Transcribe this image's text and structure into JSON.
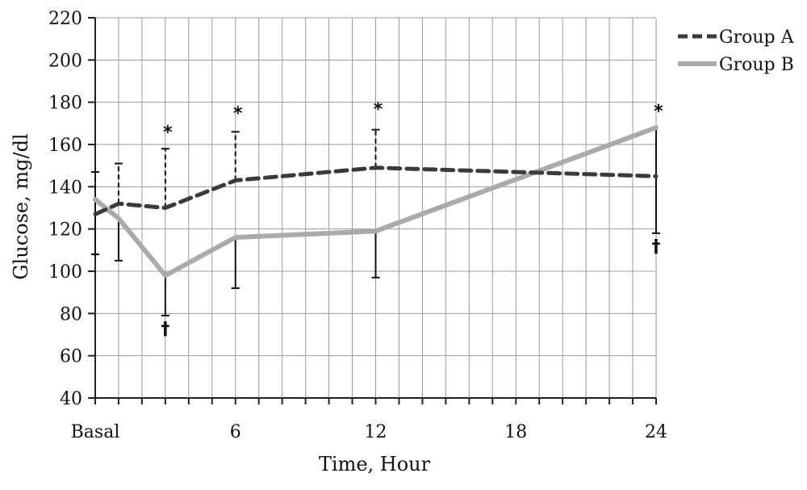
{
  "chart_data": {
    "type": "line",
    "xlabel": "Time, Hour",
    "ylabel": "Glucose, mg/dl",
    "ylim": [
      40,
      220
    ],
    "yticks": [
      40,
      60,
      80,
      100,
      120,
      140,
      160,
      180,
      200,
      220
    ],
    "xlim": [
      0,
      24
    ],
    "xticks": [
      {
        "x": 0,
        "label": "Basal"
      },
      {
        "x": 6,
        "label": "6"
      },
      {
        "x": 12,
        "label": "12"
      },
      {
        "x": 18,
        "label": "18"
      },
      {
        "x": 24,
        "label": "24"
      }
    ],
    "grid": true,
    "legend_position": "top-right",
    "series": [
      {
        "name": "Group A",
        "style": "dashed",
        "color": "#3a3a3a",
        "points": [
          {
            "x": 0,
            "y": 127,
            "err_low": 108,
            "err_high": 147
          },
          {
            "x": 1,
            "y": 132,
            "err_high": 151
          },
          {
            "x": 3,
            "y": 130,
            "err_high": 158
          },
          {
            "x": 6,
            "y": 143,
            "err_high": 166
          },
          {
            "x": 12,
            "y": 149,
            "err_high": 167
          },
          {
            "x": 24,
            "y": 145,
            "err_high": null
          }
        ]
      },
      {
        "name": "Group B",
        "style": "solid",
        "color": "#aaaaaa",
        "points": [
          {
            "x": 0,
            "y": 134,
            "err_low": 108
          },
          {
            "x": 1,
            "y": 125,
            "err_low": 105
          },
          {
            "x": 3,
            "y": 98,
            "err_low": 79
          },
          {
            "x": 6,
            "y": 116,
            "err_low": 92
          },
          {
            "x": 12,
            "y": 119,
            "err_low": 97
          },
          {
            "x": 24,
            "y": 168,
            "err_low": 118
          }
        ]
      }
    ],
    "annotations": [
      {
        "text": "*",
        "x": 3,
        "y": 163
      },
      {
        "text": "*",
        "x": 6,
        "y": 172
      },
      {
        "text": "*",
        "x": 12,
        "y": 174
      },
      {
        "text": "*",
        "x": 24,
        "y": 173
      },
      {
        "text": "†",
        "x": 3,
        "y": 70
      },
      {
        "text": "†",
        "x": 24,
        "y": 109
      }
    ]
  }
}
